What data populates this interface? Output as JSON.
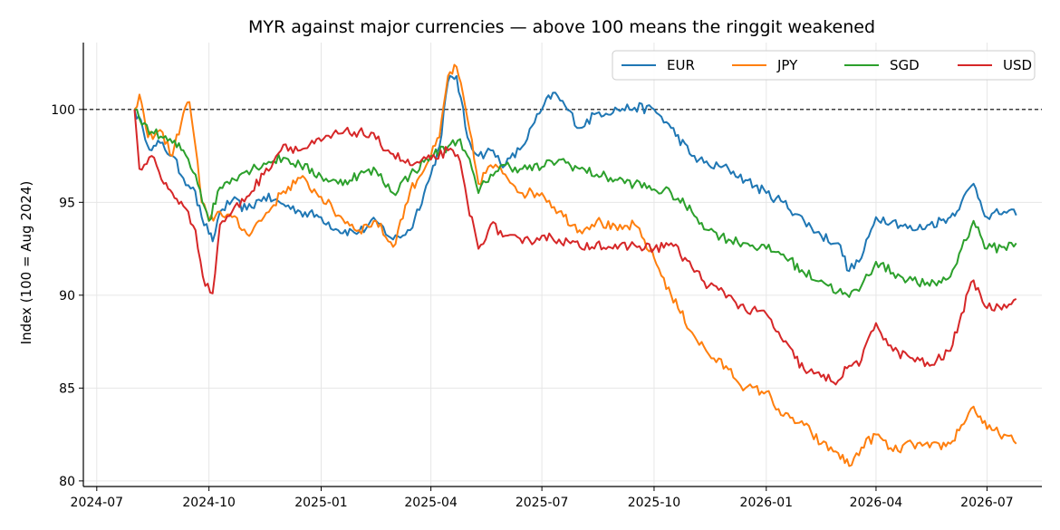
{
  "chart_data": {
    "type": "line",
    "title": "MYR against major currencies — above 100 means the ringgit weakened",
    "ylabel": "Index (100 = Aug 2024)",
    "xlabel": "",
    "xlim": [
      "2024-06-20",
      "2026-08-15"
    ],
    "ylim": [
      79.7,
      103.6
    ],
    "x_ticks": [
      {
        "date": "2024-07-01",
        "label": "2024-07"
      },
      {
        "date": "2024-10-01",
        "label": "2024-10"
      },
      {
        "date": "2025-01-01",
        "label": "2025-01"
      },
      {
        "date": "2025-04-01",
        "label": "2025-04"
      },
      {
        "date": "2025-07-01",
        "label": "2025-07"
      },
      {
        "date": "2025-10-01",
        "label": "2025-10"
      },
      {
        "date": "2026-01-01",
        "label": "2026-01"
      },
      {
        "date": "2026-04-01",
        "label": "2026-04"
      },
      {
        "date": "2026-07-01",
        "label": "2026-07"
      }
    ],
    "y_ticks": [
      80,
      85,
      90,
      95,
      100
    ],
    "reference_line": {
      "y": 100,
      "style": "dashed",
      "color": "#000000"
    },
    "grid": true,
    "legend": {
      "position": "top-right",
      "columns": 4
    },
    "series": [
      {
        "name": "EUR",
        "color": "#1f77b4",
        "points": [
          [
            "2024-08-01",
            100.0
          ],
          [
            "2024-08-08",
            98.9
          ],
          [
            "2024-08-15",
            97.8
          ],
          [
            "2024-08-22",
            98.2
          ],
          [
            "2024-09-01",
            97.5
          ],
          [
            "2024-09-10",
            96.3
          ],
          [
            "2024-09-18",
            95.8
          ],
          [
            "2024-09-25",
            94.2
          ],
          [
            "2024-10-01",
            93.3
          ],
          [
            "2024-10-04",
            92.9
          ],
          [
            "2024-10-10",
            94.5
          ],
          [
            "2024-10-20",
            95.1
          ],
          [
            "2024-11-01",
            94.6
          ],
          [
            "2024-11-15",
            95.3
          ],
          [
            "2024-12-01",
            94.9
          ],
          [
            "2024-12-15",
            94.5
          ],
          [
            "2025-01-01",
            94.2
          ],
          [
            "2025-01-15",
            93.5
          ],
          [
            "2025-02-01",
            93.4
          ],
          [
            "2025-02-15",
            94.0
          ],
          [
            "2025-03-01",
            93.0
          ],
          [
            "2025-03-15",
            93.5
          ],
          [
            "2025-04-01",
            96.5
          ],
          [
            "2025-04-08",
            98.0
          ],
          [
            "2025-04-15",
            101.5
          ],
          [
            "2025-04-22",
            101.8
          ],
          [
            "2025-05-01",
            98.5
          ],
          [
            "2025-05-10",
            97.5
          ],
          [
            "2025-05-20",
            97.8
          ],
          [
            "2025-06-01",
            97.0
          ],
          [
            "2025-06-15",
            98.0
          ],
          [
            "2025-06-25",
            99.3
          ],
          [
            "2025-07-01",
            100.0
          ],
          [
            "2025-07-10",
            100.9
          ],
          [
            "2025-07-20",
            100.2
          ],
          [
            "2025-08-01",
            99.0
          ],
          [
            "2025-08-15",
            99.8
          ],
          [
            "2025-09-01",
            100.0
          ],
          [
            "2025-09-15",
            100.1
          ],
          [
            "2025-10-01",
            100.0
          ],
          [
            "2025-10-15",
            99.0
          ],
          [
            "2025-11-01",
            97.5
          ],
          [
            "2025-11-15",
            97.0
          ],
          [
            "2025-12-01",
            96.8
          ],
          [
            "2025-12-15",
            96.2
          ],
          [
            "2026-01-01",
            95.5
          ],
          [
            "2026-01-15",
            95.0
          ],
          [
            "2026-02-01",
            94.0
          ],
          [
            "2026-02-15",
            93.2
          ],
          [
            "2026-03-01",
            92.8
          ],
          [
            "2026-03-10",
            91.3
          ],
          [
            "2026-03-20",
            92.0
          ],
          [
            "2026-04-01",
            94.2
          ],
          [
            "2026-04-15",
            94.0
          ],
          [
            "2026-05-01",
            93.5
          ],
          [
            "2026-05-15",
            93.8
          ],
          [
            "2026-06-01",
            94.2
          ],
          [
            "2026-06-10",
            95.0
          ],
          [
            "2026-06-20",
            96.0
          ],
          [
            "2026-07-01",
            94.2
          ],
          [
            "2026-07-15",
            94.5
          ],
          [
            "2026-07-25",
            94.3
          ]
        ]
      },
      {
        "name": "JPY",
        "color": "#ff7f0e",
        "points": [
          [
            "2024-08-01",
            100.0
          ],
          [
            "2024-08-05",
            100.8
          ],
          [
            "2024-08-12",
            98.5
          ],
          [
            "2024-08-22",
            98.9
          ],
          [
            "2024-09-01",
            97.5
          ],
          [
            "2024-09-10",
            99.8
          ],
          [
            "2024-09-15",
            100.4
          ],
          [
            "2024-09-20",
            98.0
          ],
          [
            "2024-09-25",
            95.0
          ],
          [
            "2024-10-01",
            94.0
          ],
          [
            "2024-10-10",
            94.5
          ],
          [
            "2024-10-20",
            94.2
          ],
          [
            "2024-11-01",
            93.3
          ],
          [
            "2024-11-15",
            94.2
          ],
          [
            "2024-12-01",
            95.6
          ],
          [
            "2024-12-15",
            96.3
          ],
          [
            "2025-01-01",
            95.3
          ],
          [
            "2025-01-15",
            94.3
          ],
          [
            "2025-02-01",
            93.5
          ],
          [
            "2025-02-15",
            94.0
          ],
          [
            "2025-03-01",
            92.6
          ],
          [
            "2025-03-15",
            95.6
          ],
          [
            "2025-04-01",
            97.5
          ],
          [
            "2025-04-08",
            98.5
          ],
          [
            "2025-04-15",
            101.8
          ],
          [
            "2025-04-22",
            102.3
          ],
          [
            "2025-05-01",
            99.5
          ],
          [
            "2025-05-10",
            96.0
          ],
          [
            "2025-05-20",
            97.0
          ],
          [
            "2025-06-01",
            96.5
          ],
          [
            "2025-06-15",
            95.5
          ],
          [
            "2025-07-01",
            95.5
          ],
          [
            "2025-07-15",
            94.5
          ],
          [
            "2025-08-01",
            93.5
          ],
          [
            "2025-08-15",
            94.0
          ],
          [
            "2025-09-01",
            93.5
          ],
          [
            "2025-09-15",
            93.8
          ],
          [
            "2025-10-01",
            92.0
          ],
          [
            "2025-10-15",
            90.0
          ],
          [
            "2025-11-01",
            88.0
          ],
          [
            "2025-11-15",
            86.8
          ],
          [
            "2025-12-01",
            86.0
          ],
          [
            "2025-12-15",
            85.0
          ],
          [
            "2026-01-01",
            84.8
          ],
          [
            "2026-01-15",
            83.5
          ],
          [
            "2026-02-01",
            83.0
          ],
          [
            "2026-02-15",
            82.0
          ],
          [
            "2026-03-01",
            81.5
          ],
          [
            "2026-03-10",
            80.8
          ],
          [
            "2026-03-20",
            81.8
          ],
          [
            "2026-04-01",
            82.5
          ],
          [
            "2026-04-15",
            81.6
          ],
          [
            "2026-05-01",
            82.0
          ],
          [
            "2026-05-15",
            81.8
          ],
          [
            "2026-06-01",
            82.0
          ],
          [
            "2026-06-10",
            83.0
          ],
          [
            "2026-06-20",
            84.0
          ],
          [
            "2026-07-01",
            82.8
          ],
          [
            "2026-07-15",
            82.5
          ],
          [
            "2026-07-25",
            82.0
          ]
        ]
      },
      {
        "name": "SGD",
        "color": "#2ca02c",
        "points": [
          [
            "2024-08-01",
            100.0
          ],
          [
            "2024-08-05",
            99.5
          ],
          [
            "2024-08-15",
            98.8
          ],
          [
            "2024-09-01",
            98.2
          ],
          [
            "2024-09-10",
            97.8
          ],
          [
            "2024-09-20",
            96.5
          ],
          [
            "2024-10-01",
            94.0
          ],
          [
            "2024-10-10",
            95.8
          ],
          [
            "2024-10-20",
            96.3
          ],
          [
            "2024-11-01",
            96.7
          ],
          [
            "2024-11-15",
            97.1
          ],
          [
            "2024-12-01",
            97.4
          ],
          [
            "2024-12-15",
            97.0
          ],
          [
            "2025-01-01",
            96.4
          ],
          [
            "2025-01-15",
            96.0
          ],
          [
            "2025-02-01",
            96.5
          ],
          [
            "2025-02-15",
            96.7
          ],
          [
            "2025-03-01",
            95.5
          ],
          [
            "2025-03-15",
            96.5
          ],
          [
            "2025-04-01",
            97.5
          ],
          [
            "2025-04-15",
            98.0
          ],
          [
            "2025-04-25",
            98.4
          ],
          [
            "2025-05-01",
            97.5
          ],
          [
            "2025-05-10",
            95.5
          ],
          [
            "2025-05-20",
            96.5
          ],
          [
            "2025-06-01",
            97.0
          ],
          [
            "2025-06-15",
            96.8
          ],
          [
            "2025-07-01",
            96.9
          ],
          [
            "2025-07-15",
            97.3
          ],
          [
            "2025-08-01",
            96.8
          ],
          [
            "2025-08-15",
            96.5
          ],
          [
            "2025-09-01",
            96.2
          ],
          [
            "2025-09-15",
            96.0
          ],
          [
            "2025-10-01",
            95.7
          ],
          [
            "2025-10-15",
            95.5
          ],
          [
            "2025-11-01",
            94.5
          ],
          [
            "2025-11-15",
            93.5
          ],
          [
            "2025-12-01",
            93.0
          ],
          [
            "2025-12-15",
            92.8
          ],
          [
            "2026-01-01",
            92.5
          ],
          [
            "2026-01-15",
            92.2
          ],
          [
            "2026-02-01",
            91.2
          ],
          [
            "2026-02-15",
            90.8
          ],
          [
            "2026-03-01",
            90.2
          ],
          [
            "2026-03-10",
            89.9
          ],
          [
            "2026-03-20",
            90.5
          ],
          [
            "2026-04-01",
            91.8
          ],
          [
            "2026-04-15",
            91.2
          ],
          [
            "2026-05-01",
            90.8
          ],
          [
            "2026-05-15",
            90.5
          ],
          [
            "2026-06-01",
            91.0
          ],
          [
            "2026-06-10",
            92.5
          ],
          [
            "2026-06-20",
            94.0
          ],
          [
            "2026-07-01",
            92.5
          ],
          [
            "2026-07-15",
            92.6
          ],
          [
            "2026-07-25",
            92.8
          ]
        ]
      },
      {
        "name": "USD",
        "color": "#d62728",
        "points": [
          [
            "2024-08-01",
            100.0
          ],
          [
            "2024-08-05",
            96.8
          ],
          [
            "2024-08-15",
            97.5
          ],
          [
            "2024-08-25",
            96.0
          ],
          [
            "2024-09-01",
            95.5
          ],
          [
            "2024-09-10",
            94.8
          ],
          [
            "2024-09-20",
            93.5
          ],
          [
            "2024-09-28",
            90.5
          ],
          [
            "2024-10-04",
            90.1
          ],
          [
            "2024-10-10",
            93.8
          ],
          [
            "2024-10-20",
            94.5
          ],
          [
            "2024-11-01",
            95.3
          ],
          [
            "2024-11-15",
            96.5
          ],
          [
            "2024-12-01",
            98.1
          ],
          [
            "2024-12-15",
            97.8
          ],
          [
            "2025-01-01",
            98.3
          ],
          [
            "2025-01-15",
            98.7
          ],
          [
            "2025-02-01",
            98.8
          ],
          [
            "2025-02-15",
            98.4
          ],
          [
            "2025-03-01",
            97.6
          ],
          [
            "2025-03-15",
            97.0
          ],
          [
            "2025-04-01",
            97.3
          ],
          [
            "2025-04-15",
            97.8
          ],
          [
            "2025-04-25",
            97.2
          ],
          [
            "2025-05-01",
            95.0
          ],
          [
            "2025-05-10",
            92.5
          ],
          [
            "2025-05-20",
            93.8
          ],
          [
            "2025-06-01",
            93.2
          ],
          [
            "2025-06-15",
            92.8
          ],
          [
            "2025-07-01",
            93.2
          ],
          [
            "2025-07-15",
            93.0
          ],
          [
            "2025-08-01",
            92.6
          ],
          [
            "2025-08-15",
            92.8
          ],
          [
            "2025-09-01",
            92.5
          ],
          [
            "2025-09-15",
            92.7
          ],
          [
            "2025-10-01",
            92.5
          ],
          [
            "2025-10-15",
            92.8
          ],
          [
            "2025-11-01",
            91.5
          ],
          [
            "2025-11-15",
            90.5
          ],
          [
            "2025-12-01",
            90.0
          ],
          [
            "2025-12-15",
            89.2
          ],
          [
            "2026-01-01",
            89.0
          ],
          [
            "2026-01-15",
            87.5
          ],
          [
            "2026-02-01",
            86.0
          ],
          [
            "2026-02-15",
            85.6
          ],
          [
            "2026-03-01",
            85.4
          ],
          [
            "2026-03-10",
            86.2
          ],
          [
            "2026-03-20",
            86.5
          ],
          [
            "2026-04-01",
            88.5
          ],
          [
            "2026-04-15",
            87.0
          ],
          [
            "2026-05-01",
            86.6
          ],
          [
            "2026-05-15",
            86.2
          ],
          [
            "2026-06-01",
            87.0
          ],
          [
            "2026-06-10",
            89.0
          ],
          [
            "2026-06-20",
            90.8
          ],
          [
            "2026-07-01",
            89.3
          ],
          [
            "2026-07-15",
            89.5
          ],
          [
            "2026-07-25",
            89.8
          ]
        ]
      }
    ]
  }
}
